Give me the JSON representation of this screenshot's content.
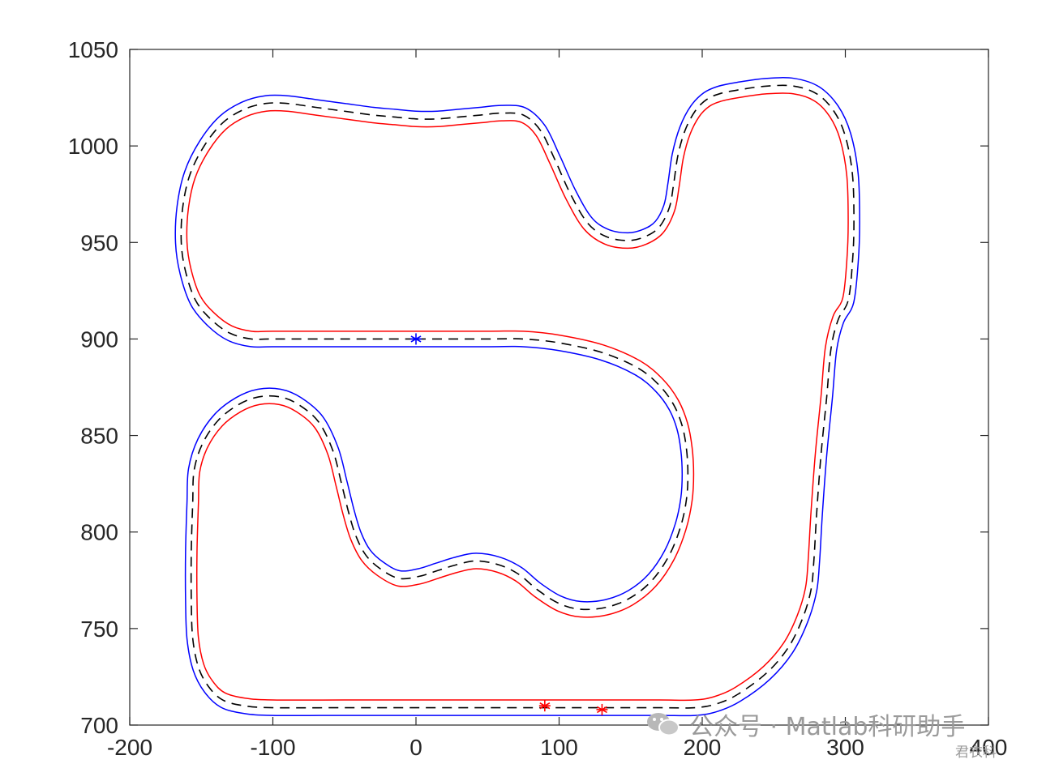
{
  "chart_data": {
    "type": "line",
    "title": "",
    "xlabel": "",
    "ylabel": "",
    "xlim": [
      -200,
      400
    ],
    "ylim": [
      700,
      1050
    ],
    "xticks": [
      -200,
      -100,
      0,
      100,
      200,
      300,
      400
    ],
    "yticks": [
      700,
      750,
      800,
      850,
      900,
      950,
      1000,
      1050
    ],
    "xtick_labels": [
      "-200",
      "-100",
      "0",
      "100",
      "200",
      "300",
      "400"
    ],
    "ytick_labels": [
      "700",
      "750",
      "800",
      "850",
      "900",
      "950",
      "1000",
      "1050"
    ],
    "grid": false,
    "centerline": [
      [
        0,
        900
      ],
      [
        50,
        900
      ],
      [
        75,
        900
      ],
      [
        100,
        898
      ],
      [
        130,
        893
      ],
      [
        155,
        885
      ],
      [
        170,
        876
      ],
      [
        180,
        866
      ],
      [
        186,
        855
      ],
      [
        189,
        843
      ],
      [
        190,
        830
      ],
      [
        189,
        817
      ],
      [
        185,
        803
      ],
      [
        177,
        788
      ],
      [
        165,
        775
      ],
      [
        150,
        766
      ],
      [
        133,
        761
      ],
      [
        115,
        760
      ],
      [
        100,
        763
      ],
      [
        85,
        770
      ],
      [
        72,
        778
      ],
      [
        58,
        783
      ],
      [
        42,
        785
      ],
      [
        28,
        783
      ],
      [
        15,
        780
      ],
      [
        2,
        777
      ],
      [
        -12,
        776
      ],
      [
        -25,
        781
      ],
      [
        -35,
        788
      ],
      [
        -42,
        798
      ],
      [
        -47,
        810
      ],
      [
        -52,
        825
      ],
      [
        -58,
        842
      ],
      [
        -68,
        857
      ],
      [
        -82,
        866
      ],
      [
        -95,
        870
      ],
      [
        -110,
        870
      ],
      [
        -124,
        866
      ],
      [
        -138,
        858
      ],
      [
        -149,
        846
      ],
      [
        -155,
        832
      ],
      [
        -156,
        815
      ],
      [
        -157,
        790
      ],
      [
        -157,
        765
      ],
      [
        -156,
        745
      ],
      [
        -152,
        730
      ],
      [
        -145,
        720
      ],
      [
        -135,
        713
      ],
      [
        -120,
        710
      ],
      [
        -100,
        709
      ],
      [
        -50,
        709
      ],
      [
        0,
        709
      ],
      [
        50,
        709
      ],
      [
        90,
        709
      ],
      [
        130,
        709
      ],
      [
        170,
        709
      ],
      [
        195,
        709
      ],
      [
        210,
        711
      ],
      [
        225,
        716
      ],
      [
        245,
        727
      ],
      [
        260,
        740
      ],
      [
        270,
        755
      ],
      [
        276,
        770
      ],
      [
        278,
        785
      ],
      [
        280,
        810
      ],
      [
        283,
        840
      ],
      [
        287,
        870
      ],
      [
        290,
        895
      ],
      [
        295,
        910
      ],
      [
        302,
        920
      ],
      [
        305,
        940
      ],
      [
        306,
        960
      ],
      [
        305,
        985
      ],
      [
        300,
        1005
      ],
      [
        292,
        1018
      ],
      [
        280,
        1027
      ],
      [
        264,
        1031
      ],
      [
        245,
        1031
      ],
      [
        225,
        1029
      ],
      [
        212,
        1027
      ],
      [
        203,
        1024
      ],
      [
        195,
        1018
      ],
      [
        188,
        1008
      ],
      [
        183,
        995
      ],
      [
        180,
        980
      ],
      [
        177,
        968
      ],
      [
        170,
        958
      ],
      [
        160,
        953
      ],
      [
        148,
        951
      ],
      [
        133,
        953
      ],
      [
        120,
        960
      ],
      [
        108,
        975
      ],
      [
        97,
        993
      ],
      [
        87,
        1008
      ],
      [
        75,
        1016
      ],
      [
        60,
        1017
      ],
      [
        45,
        1016
      ],
      [
        30,
        1015
      ],
      [
        15,
        1014
      ],
      [
        0,
        1014
      ],
      [
        -15,
        1015
      ],
      [
        -30,
        1016
      ],
      [
        -50,
        1018
      ],
      [
        -70,
        1020
      ],
      [
        -90,
        1022
      ],
      [
        -105,
        1022
      ],
      [
        -120,
        1019
      ],
      [
        -135,
        1012
      ],
      [
        -148,
        1000
      ],
      [
        -158,
        985
      ],
      [
        -163,
        968
      ],
      [
        -164,
        950
      ],
      [
        -161,
        935
      ],
      [
        -154,
        920
      ],
      [
        -143,
        910
      ],
      [
        -130,
        903
      ],
      [
        -115,
        900
      ],
      [
        -100,
        900
      ],
      [
        -50,
        900
      ],
      [
        0,
        900
      ]
    ],
    "series": [
      {
        "name": "",
        "color": "#ff0000",
        "offset": 4
      },
      {
        "name": "",
        "color": "#0000ff",
        "offset": -4
      },
      {
        "name": "",
        "color": "#000000",
        "style": "dashed",
        "offset": 0
      }
    ],
    "markers": [
      {
        "x": 0,
        "y": 900,
        "color": "#0000ff",
        "symbol": "asterisk"
      },
      {
        "x": 90,
        "y": 710,
        "color": "#ff0000",
        "symbol": "asterisk"
      },
      {
        "x": 130,
        "y": 708,
        "color": "#ff0000",
        "symbol": "asterisk"
      }
    ]
  },
  "watermark": {
    "text": "公众号 · Matlab科研助手",
    "subtext": "君衣科",
    "icon": "wechat-icon"
  }
}
